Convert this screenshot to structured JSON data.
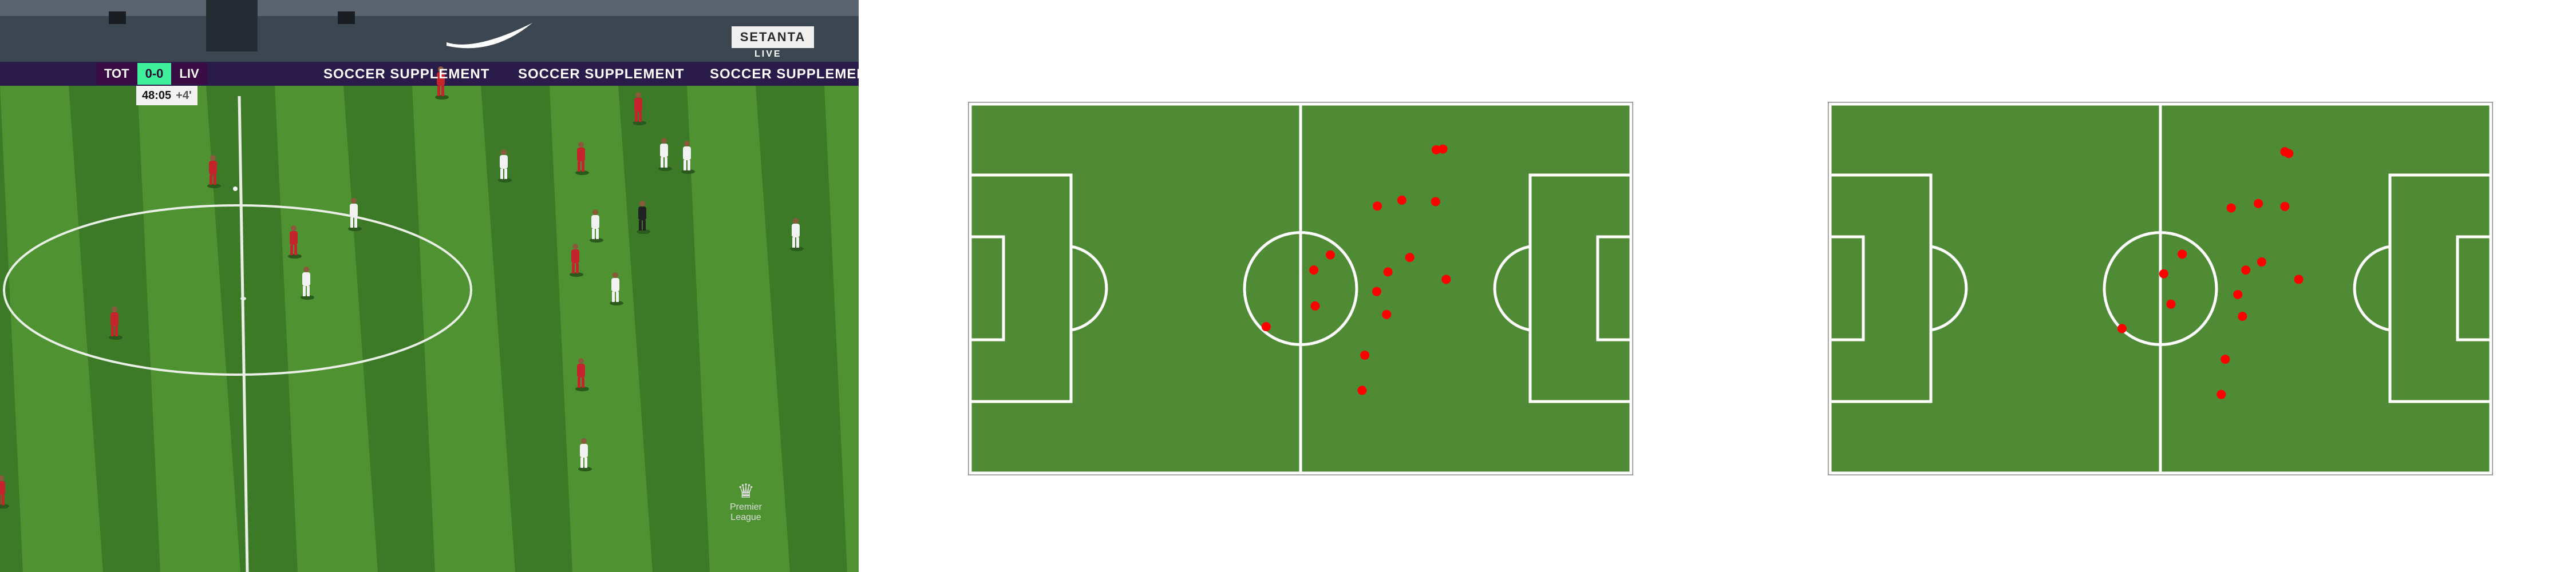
{
  "broadcast": {
    "score_bug": {
      "home": "TOT",
      "score": "0-0",
      "away": "LIV"
    },
    "clock": {
      "time": "48:05",
      "added": "+4'"
    },
    "channel": "SETANTA",
    "live": "LIVE",
    "board_text": "SOCCER SUPPLEMENT",
    "league_logo": "Premier League",
    "colors": {
      "pitch_dark": "#3c7a27",
      "pitch_light": "#4e9232",
      "red_kit": "#c6242c",
      "white_kit": "#f2f2f2"
    }
  },
  "tactical_maps": {
    "pitch_color": "#4f8a35",
    "line_color": "#ffffff",
    "dot_color": "#ff0000",
    "maps": [
      {
        "players": [
          [
            71.5,
            12.3
          ],
          [
            70.5,
            12.5
          ],
          [
            65.3,
            26.1
          ],
          [
            70.4,
            26.5
          ],
          [
            61.6,
            27.7
          ],
          [
            54.5,
            40.9
          ],
          [
            66.5,
            41.6
          ],
          [
            52.0,
            45.0
          ],
          [
            63.2,
            45.5
          ],
          [
            72.0,
            47.5
          ],
          [
            61.5,
            50.8
          ],
          [
            52.2,
            54.7
          ],
          [
            63.0,
            57.0
          ],
          [
            44.8,
            60.3
          ],
          [
            59.7,
            68.0
          ],
          [
            59.3,
            77.5
          ]
        ]
      },
      {
        "players": [
          [
            69.4,
            13.5
          ],
          [
            68.8,
            13.0
          ],
          [
            64.8,
            27.0
          ],
          [
            60.7,
            28.2
          ],
          [
            68.8,
            27.8
          ],
          [
            53.3,
            40.7
          ],
          [
            65.3,
            42.8
          ],
          [
            62.9,
            45.0
          ],
          [
            70.9,
            47.5
          ],
          [
            50.5,
            46.0
          ],
          [
            61.7,
            51.6
          ],
          [
            51.6,
            54.2
          ],
          [
            62.4,
            57.5
          ],
          [
            44.2,
            60.8
          ],
          [
            59.8,
            69.1
          ],
          [
            59.2,
            78.6
          ]
        ]
      }
    ]
  }
}
